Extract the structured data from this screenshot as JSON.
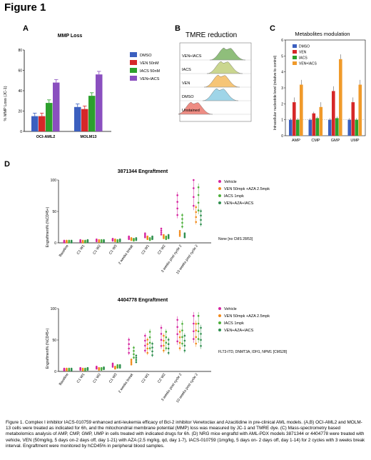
{
  "figure_title": "Figure 1",
  "panels": {
    "A": "A",
    "B": "B",
    "C": "C",
    "D": "D"
  },
  "colors": {
    "dmso": "#3b5fbf",
    "ven": "#d62728",
    "iacs": "#2ca02c",
    "ven_iacs": "#8a4fbf",
    "vehicle": "#d6249f",
    "ven_aza": "#f28a1a",
    "iacs_mpk": "#4caf3a",
    "ven_aza_iacs": "#2f8f4f"
  },
  "panel_b": {
    "title": "TMRE reduction",
    "labels": [
      "VEN+IACS",
      "IACS",
      "VEN",
      "DMSO",
      "Unstained"
    ]
  },
  "panel_d": {
    "chart1_title": "3871344 Engraftment",
    "chart2_title": "4404778 Engraftment",
    "ylabel": "Engraftment% (%CD45+)",
    "x_categories": [
      "Baseline",
      "C1 W1",
      "C1 W2",
      "C1 W3",
      "2 weeks break",
      "C2 W1",
      "C2 W2",
      "3 weeks post cycle 2",
      "10 weeks post cycle 2"
    ],
    "legend": [
      "Vehicle",
      "VEN 50mpk +AZA 2.5mpk",
      "IACS 1mpk",
      "VEN+AZA+IACS"
    ],
    "note1": "None [no CMS 28/53]",
    "note2": "FLT3-ITD, DNMT3A, IDH1, NPM1 [CMS28]"
  },
  "caption": "Figure 1. Complex I inhibitor IACS-010759 enhanced anti-leukemia efficacy of Bcl-2 inhibitor Venetoclax and Azacitidine in pre-clinical AML models. (A,B) OCI-AML2 and MOLM-13 cells were treated as indicated for 6h, and the mitochondrial membrane potential (MMP) loss was measured by JC-1 and TMRE dye. (C) Mass-spectrometry based metabolomics analysis of AMP, CMP, GMP, UMP in cells treated with indicated drugs for 6h. (D) NRG mice engraftd with AML-PDX models 3871344 or 4404778 were treated with vehicle, VEN (50mg/kg, 5 days on-2 days off, day 1-21) with AZA (2.5 mg/kg, qd, day 1-7), IACS-010759 (1mg/kg, 5 days on- 2 days off, day 1-14) for 2 cycles with 3 weeks break interval. Engraftment were monitored by hCD45% in peripheral blood samples.",
  "chart_data": [
    {
      "type": "bar",
      "title": "MMP Loss",
      "ylabel": "% MMP Loss (JC-1)",
      "categories": [
        "OCI-AML2",
        "MOLM13"
      ],
      "ylim": [
        0,
        80
      ],
      "yticks": [
        "0",
        "20",
        "40",
        "60",
        "80"
      ],
      "series": [
        {
          "name": "DMSO",
          "values": [
            15,
            24
          ]
        },
        {
          "name": "VEN 50nM",
          "values": [
            15,
            22
          ]
        },
        {
          "name": "IACS 50nM",
          "values": [
            28,
            35
          ]
        },
        {
          "name": "VEN+IACS",
          "values": [
            48,
            56
          ]
        }
      ]
    },
    {
      "type": "bar",
      "title": "Metabolites modulation",
      "ylabel": "Intracellular nucleotide level (relative to control)",
      "categories": [
        "AMP",
        "CMP",
        "GMP",
        "UMP"
      ],
      "ylim": [
        0,
        6
      ],
      "yticks": [
        "0",
        "1",
        "2",
        "3",
        "4",
        "5",
        "6"
      ],
      "series": [
        {
          "name": "DMSO",
          "values": [
            1.0,
            1.0,
            1.0,
            1.0
          ]
        },
        {
          "name": "VEN",
          "values": [
            2.1,
            1.4,
            2.8,
            2.1
          ]
        },
        {
          "name": "IACS",
          "values": [
            1.0,
            1.1,
            1.1,
            1.0
          ]
        },
        {
          "name": "VEN+IACS",
          "values": [
            3.2,
            1.8,
            4.8,
            3.2
          ]
        }
      ]
    }
  ]
}
